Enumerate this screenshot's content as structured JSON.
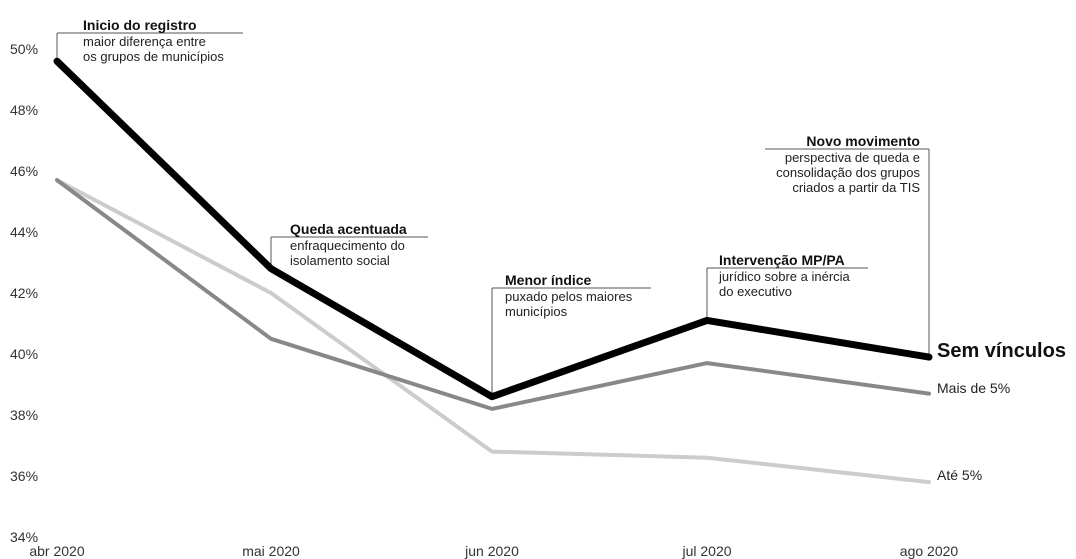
{
  "chart_data": {
    "type": "line",
    "title": "",
    "xlabel": "",
    "ylabel": "",
    "categories": [
      "abr 2020",
      "mai 2020",
      "jun 2020",
      "jul 2020",
      "ago 2020"
    ],
    "ylim": [
      34,
      50
    ],
    "yticks": [
      "34%",
      "36%",
      "38%",
      "40%",
      "42%",
      "44%",
      "46%",
      "48%",
      "50%"
    ],
    "grid": false,
    "series": [
      {
        "name": "Sem vínculos",
        "values": [
          49.6,
          42.8,
          38.6,
          41.1,
          39.9
        ],
        "color": "#000000",
        "emphasis": true
      },
      {
        "name": "Mais de 5%",
        "values": [
          45.7,
          40.5,
          38.2,
          39.7,
          38.7
        ],
        "color": "#888888"
      },
      {
        "name": "Até 5%",
        "values": [
          45.7,
          42.0,
          36.8,
          36.6,
          35.8
        ],
        "color": "#cccccc"
      }
    ],
    "annotations": [
      {
        "title": "Inicio do registro",
        "lines": [
          "maior diferença entre",
          "os grupos de municípios"
        ],
        "point": 0,
        "align": "left"
      },
      {
        "title": "Queda acentuada",
        "lines": [
          "enfraquecimento do",
          "isolamento social"
        ],
        "point": 1,
        "align": "left"
      },
      {
        "title": "Menor índice",
        "lines": [
          "puxado pelos maiores",
          "municípios"
        ],
        "point": 2,
        "align": "left"
      },
      {
        "title": "Intervenção MP/PA",
        "lines": [
          "jurídico sobre a inércia",
          "do executivo"
        ],
        "point": 3,
        "align": "left"
      },
      {
        "title": "Novo movimento",
        "lines": [
          "perspectiva de queda e",
          "consolidação dos grupos",
          "criados a partir da TIS"
        ],
        "point": 4,
        "align": "right"
      }
    ]
  }
}
